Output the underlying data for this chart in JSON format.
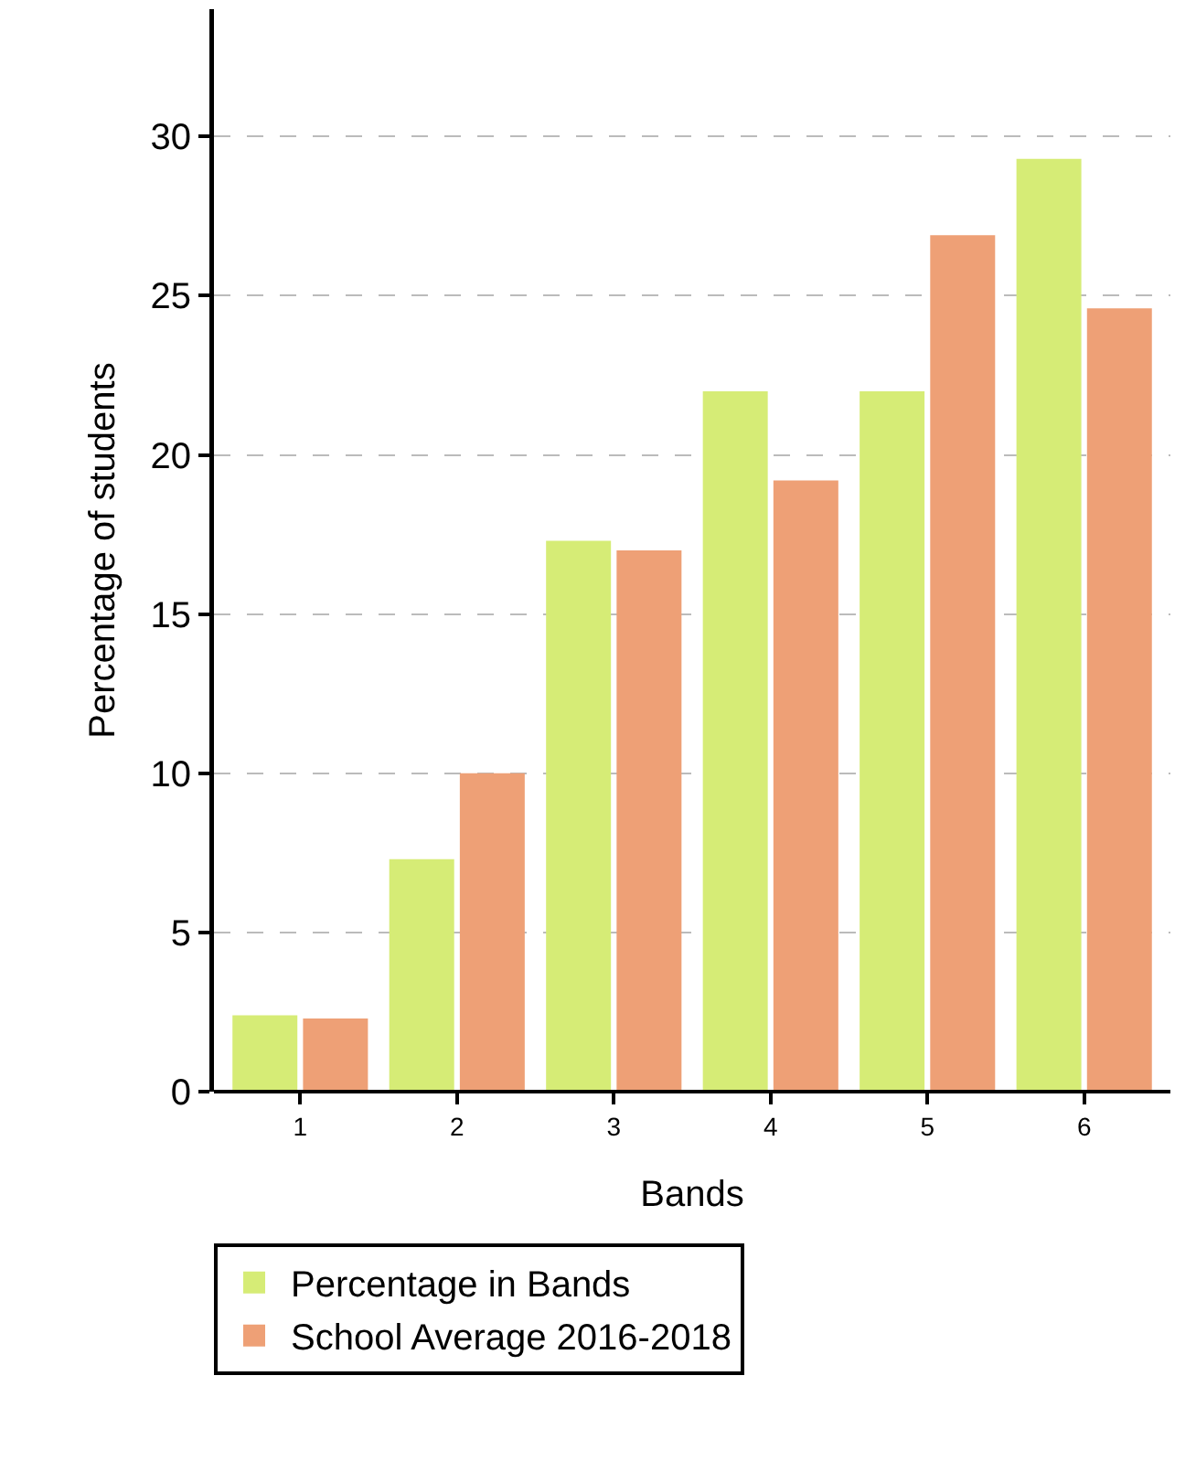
{
  "chart_data": {
    "type": "bar",
    "xlabel": "Bands",
    "ylabel": "Percentage of students",
    "categories": [
      "1",
      "2",
      "3",
      "4",
      "5",
      "6"
    ],
    "series": [
      {
        "name": "Percentage in Bands",
        "color": "#d6ec76",
        "values": [
          2.4,
          7.3,
          17.3,
          22.0,
          22.0,
          29.3
        ]
      },
      {
        "name": "School Average 2016-2018",
        "color": "#eea076",
        "values": [
          2.3,
          10.0,
          17.0,
          19.2,
          26.9,
          24.6
        ]
      }
    ],
    "ylim": [
      0,
      34
    ],
    "yticks": [
      0,
      5,
      10,
      15,
      20,
      25,
      30
    ],
    "grid": "y",
    "legend": "bottom"
  }
}
